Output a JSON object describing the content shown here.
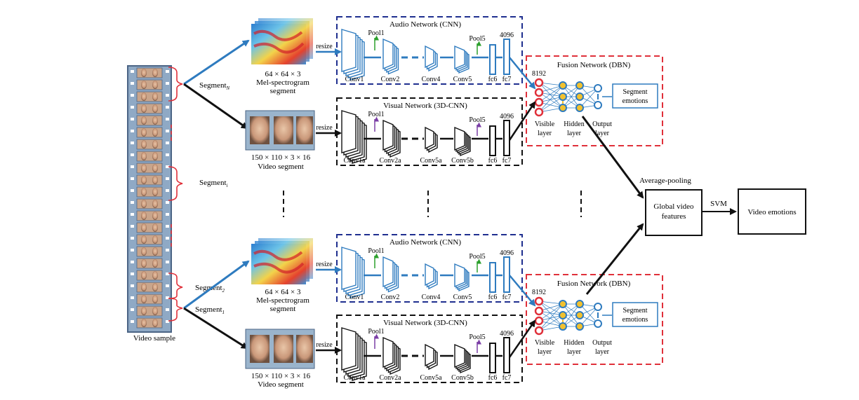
{
  "video_sample_label": "Video sample",
  "segments": {
    "n": {
      "base": "Segment",
      "sub": "N"
    },
    "i": {
      "base": "Segment",
      "sub": "i"
    },
    "two": {
      "base": "Segment",
      "sub": "2"
    },
    "one": {
      "base": "Segment",
      "sub": "1"
    }
  },
  "mel": {
    "dims": "64 × 64 × 3",
    "line1": "Mel-spectrogram",
    "line2": "segment"
  },
  "video": {
    "dims": "150 × 110 × 3 × 16",
    "label": "Video segment"
  },
  "resize": "resize",
  "audio_net": {
    "title": "Audio Network (CNN)",
    "pool1": "Pool1",
    "pool5": "Pool5",
    "dim": "4096",
    "layers": [
      "Conv1",
      "Conv2",
      "Conv4",
      "Conv5",
      "fc6",
      "fc7"
    ]
  },
  "visual_net": {
    "title": "Visual Network (3D-CNN)",
    "pool1": "Pool1",
    "pool5": "Pool5",
    "dim": "4096",
    "layers": [
      "Conv1a",
      "Conv2a",
      "Conv5a",
      "Conv5b",
      "fc6",
      "fc7"
    ]
  },
  "fusion": {
    "title": "Fusion Network (DBN)",
    "dim": "8192",
    "visible": [
      "Visible",
      "layer"
    ],
    "hidden": [
      "Hidden",
      "layer"
    ],
    "output": [
      "Output",
      "layer"
    ],
    "seg_emotions": [
      "Segment",
      "emotions"
    ]
  },
  "average_pooling": "Average-pooling",
  "global_features": [
    "Global video",
    "features"
  ],
  "svm": "SVM",
  "video_emotions": "Video emotions",
  "colors": {
    "audio_blue": "#2e7bbf",
    "audio_box": "#1f2f8f",
    "fusion_red": "#e0303a",
    "bracket_red": "#e0303a",
    "pool_audio_green": "#2ca02c",
    "pool_visual_purple": "#7b3fa6",
    "node_fill": "#f2c12e",
    "node_stroke": "#2e7bbf"
  }
}
